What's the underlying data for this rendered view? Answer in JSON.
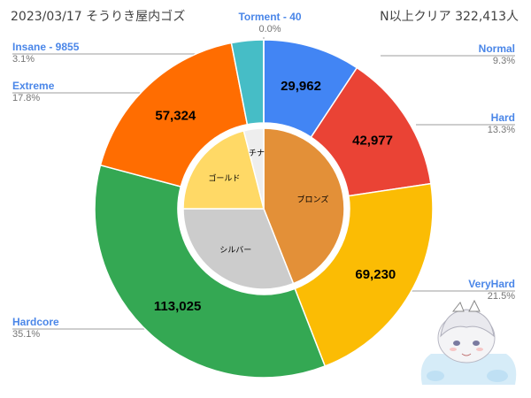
{
  "header": {
    "title": "2023/03/17 そうりき屋内ゴズ",
    "subtitle": "N以上クリア 322,413人"
  },
  "chart_data": [
    {
      "type": "pie",
      "subtype": "donut-outer",
      "total_label": "N以上クリア 322,413人",
      "slices": [
        {
          "name": "Normal",
          "value": 29962,
          "value_label": "29,962",
          "pct": "9.3%",
          "color": "#4285f4"
        },
        {
          "name": "Hard",
          "value": 42977,
          "value_label": "42,977",
          "pct": "13.3%",
          "color": "#ea4335"
        },
        {
          "name": "VeryHard",
          "value": 69230,
          "value_label": "69,230",
          "pct": "21.5%",
          "color": "#fbbc04"
        },
        {
          "name": "Hardcore",
          "value": 113025,
          "value_label": "113,025",
          "pct": "35.1%",
          "color": "#34a853"
        },
        {
          "name": "Extreme",
          "value": 57324,
          "value_label": "57,324",
          "pct": "17.8%",
          "color": "#ff6d01"
        },
        {
          "name": "Insane - 9855",
          "value": 9855,
          "value_label": "",
          "pct": "3.1%",
          "color": "#46bdc6"
        },
        {
          "name": "Torment - 40",
          "value": 40,
          "value_label": "",
          "pct": "0.0%",
          "color": "#7baaf7"
        }
      ]
    },
    {
      "type": "pie",
      "subtype": "inner",
      "slices": [
        {
          "name": "ブロンズ",
          "value": 44,
          "color": "#e39038"
        },
        {
          "name": "シルバー",
          "value": 31,
          "color": "#cccccc"
        },
        {
          "name": "ゴールド",
          "value": 21,
          "color": "#ffd966"
        },
        {
          "name": "チナ",
          "value": 4,
          "color": "#eeeeee"
        }
      ]
    }
  ],
  "decor": {
    "character_icon": "chibi-character-watermark"
  }
}
